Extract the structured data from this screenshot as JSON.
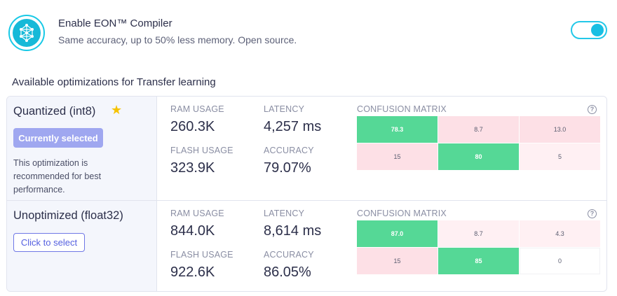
{
  "eon": {
    "title": "Enable EON™ Compiler",
    "subtitle": "Same accuracy, up to 50% less memory. Open source.",
    "enabled": true
  },
  "section_title": "Available optimizations for Transfer learning",
  "labels": {
    "ram": "RAM USAGE",
    "latency": "LATENCY",
    "flash": "FLASH USAGE",
    "accuracy": "ACCURACY",
    "confusion": "CONFUSION MATRIX",
    "help": "?"
  },
  "rows": [
    {
      "name": "Quantized (int8)",
      "starred": true,
      "status_label": "Currently selected",
      "note": "This optimization is recommended for best performance.",
      "ram": "260.3K",
      "latency": "4,257 ms",
      "flash": "323.9K",
      "accuracy": "79.07%",
      "matrix": [
        [
          "78.3",
          "8.7",
          "13.0"
        ],
        [
          "15",
          "80",
          "5"
        ]
      ]
    },
    {
      "name": "Unoptimized (float32)",
      "starred": false,
      "action_label": "Click to select",
      "ram": "844.0K",
      "latency": "8,614 ms",
      "flash": "922.6K",
      "accuracy": "86.05%",
      "matrix": [
        [
          "87.0",
          "8.7",
          "4.3"
        ],
        [
          "15",
          "85",
          "0"
        ]
      ]
    }
  ],
  "colors": {
    "accent": "#18c9e6",
    "selected_badge": "#9fa7f0",
    "matrix_high": "#55d896",
    "matrix_mid": "#fde0e6",
    "matrix_low": "#fff0f3"
  }
}
